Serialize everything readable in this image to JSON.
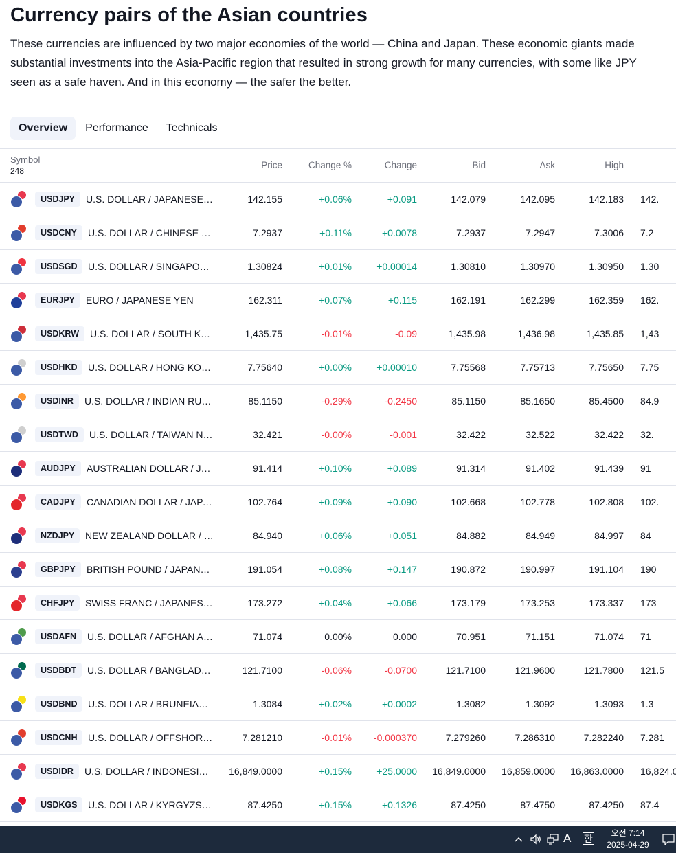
{
  "title": "Currency pairs of the Asian countries",
  "intro": "These currencies are influenced by two major economies of the world — China and Japan. These economic giants made substantial investments into the Asia-Pacific region that resulted in strong growth for many currencies, with some like JPY seen as a safe haven. And in this economy — the safer the better.",
  "tabs": [
    {
      "label": "Overview",
      "active": true
    },
    {
      "label": "Performance",
      "active": false
    },
    {
      "label": "Technicals",
      "active": false
    }
  ],
  "table": {
    "symbol_header": "Symbol",
    "symbol_count": "248",
    "headers": {
      "price": "Price",
      "change_pct": "Change %",
      "change": "Change",
      "bid": "Bid",
      "ask": "Ask",
      "high": "High"
    },
    "rows": [
      {
        "ticker": "USDJPY",
        "name": "U.S. DOLLAR / JAPANESE YEN",
        "price": "142.155",
        "change_pct": "+0.06%",
        "change": "+0.091",
        "bid": "142.079",
        "ask": "142.095",
        "high": "142.183",
        "low": "142.",
        "dir": "pos",
        "base_color": "#3c5aa6",
        "quote_color": "#e8384f"
      },
      {
        "ticker": "USDCNY",
        "name": "U.S. DOLLAR / CHINESE YUAN",
        "price": "7.2937",
        "change_pct": "+0.11%",
        "change": "+0.0078",
        "bid": "7.2937",
        "ask": "7.2947",
        "high": "7.3006",
        "low": "7.2",
        "dir": "pos",
        "base_color": "#3c5aa6",
        "quote_color": "#e23d2d"
      },
      {
        "ticker": "USDSGD",
        "name": "U.S. DOLLAR / SINGAPORE D...",
        "price": "1.30824",
        "change_pct": "+0.01%",
        "change": "+0.00014",
        "bid": "1.30810",
        "ask": "1.30970",
        "high": "1.30950",
        "low": "1.30",
        "dir": "pos",
        "base_color": "#3c5aa6",
        "quote_color": "#ef3340"
      },
      {
        "ticker": "EURJPY",
        "name": "EURO / JAPANESE YEN",
        "price": "162.311",
        "change_pct": "+0.07%",
        "change": "+0.115",
        "bid": "162.191",
        "ask": "162.299",
        "high": "162.359",
        "low": "162.",
        "dir": "pos",
        "base_color": "#1f3f9a",
        "quote_color": "#e8384f"
      },
      {
        "ticker": "USDKRW",
        "name": "U.S. DOLLAR / SOUTH KORE...",
        "price": "1,435.75",
        "change_pct": "-0.01%",
        "change": "-0.09",
        "bid": "1,435.98",
        "ask": "1,436.98",
        "high": "1,435.85",
        "low": "1,43",
        "dir": "neg",
        "base_color": "#3c5aa6",
        "quote_color": "#cd2e3a"
      },
      {
        "ticker": "USDHKD",
        "name": "U.S. DOLLAR / HONG KONG ...",
        "price": "7.75640",
        "change_pct": "+0.00%",
        "change": "+0.00010",
        "bid": "7.75568",
        "ask": "7.75713",
        "high": "7.75650",
        "low": "7.75",
        "dir": "pos",
        "base_color": "#3c5aa6",
        "quote_color": "#cfcfcf"
      },
      {
        "ticker": "USDINR",
        "name": "U.S. DOLLAR / INDIAN RUPEE",
        "price": "85.1150",
        "change_pct": "-0.29%",
        "change": "-0.2450",
        "bid": "85.1150",
        "ask": "85.1650",
        "high": "85.4500",
        "low": "84.9",
        "dir": "neg",
        "base_color": "#3c5aa6",
        "quote_color": "#ff9933"
      },
      {
        "ticker": "USDTWD",
        "name": "U.S. DOLLAR / TAIWAN NEW...",
        "price": "32.421",
        "change_pct": "-0.00%",
        "change": "-0.001",
        "bid": "32.422",
        "ask": "32.522",
        "high": "32.422",
        "low": "32.",
        "dir": "neg",
        "base_color": "#3c5aa6",
        "quote_color": "#cfcfcf"
      },
      {
        "ticker": "AUDJPY",
        "name": "AUSTRALIAN DOLLAR / JAPA...",
        "price": "91.414",
        "change_pct": "+0.10%",
        "change": "+0.089",
        "bid": "91.314",
        "ask": "91.402",
        "high": "91.439",
        "low": "91",
        "dir": "pos",
        "base_color": "#1e2e7a",
        "quote_color": "#e8384f"
      },
      {
        "ticker": "CADJPY",
        "name": "CANADIAN DOLLAR / JAPANE...",
        "price": "102.764",
        "change_pct": "+0.09%",
        "change": "+0.090",
        "bid": "102.668",
        "ask": "102.778",
        "high": "102.808",
        "low": "102.",
        "dir": "pos",
        "base_color": "#e4262b",
        "quote_color": "#e8384f"
      },
      {
        "ticker": "NZDJPY",
        "name": "NEW ZEALAND DOLLAR / JA...",
        "price": "84.940",
        "change_pct": "+0.06%",
        "change": "+0.051",
        "bid": "84.882",
        "ask": "84.949",
        "high": "84.997",
        "low": "84",
        "dir": "pos",
        "base_color": "#1e2e7a",
        "quote_color": "#e8384f"
      },
      {
        "ticker": "GBPJPY",
        "name": "BRITISH POUND / JAPANESE ...",
        "price": "191.054",
        "change_pct": "+0.08%",
        "change": "+0.147",
        "bid": "190.872",
        "ask": "190.997",
        "high": "191.104",
        "low": "190",
        "dir": "pos",
        "base_color": "#2c3f8f",
        "quote_color": "#e8384f"
      },
      {
        "ticker": "CHFJPY",
        "name": "SWISS FRANC / JAPANESE YEN",
        "price": "173.272",
        "change_pct": "+0.04%",
        "change": "+0.066",
        "bid": "173.179",
        "ask": "173.253",
        "high": "173.337",
        "low": "173",
        "dir": "pos",
        "base_color": "#e4262b",
        "quote_color": "#e8384f"
      },
      {
        "ticker": "USDAFN",
        "name": "U.S. DOLLAR / AFGHAN AFG...",
        "price": "71.074",
        "change_pct": "0.00%",
        "change": "0.000",
        "bid": "70.951",
        "ask": "71.151",
        "high": "71.074",
        "low": "71",
        "dir": "flat",
        "base_color": "#3c5aa6",
        "quote_color": "#4f9b4c"
      },
      {
        "ticker": "USDBDT",
        "name": "U.S. DOLLAR / BANGLADESH...",
        "price": "121.7100",
        "change_pct": "-0.06%",
        "change": "-0.0700",
        "bid": "121.7100",
        "ask": "121.9600",
        "high": "121.7800",
        "low": "121.5",
        "dir": "neg",
        "base_color": "#3c5aa6",
        "quote_color": "#006a4e"
      },
      {
        "ticker": "USDBND",
        "name": "U.S. DOLLAR / BRUNEIAN D...",
        "price": "1.3084",
        "change_pct": "+0.02%",
        "change": "+0.0002",
        "bid": "1.3082",
        "ask": "1.3092",
        "high": "1.3093",
        "low": "1.3",
        "dir": "pos",
        "base_color": "#3c5aa6",
        "quote_color": "#f7e017"
      },
      {
        "ticker": "USDCNH",
        "name": "U.S. DOLLAR / OFFSHORE C...",
        "price": "7.281210",
        "change_pct": "-0.01%",
        "change": "-0.000370",
        "bid": "7.279260",
        "ask": "7.286310",
        "high": "7.282240",
        "low": "7.281",
        "dir": "neg",
        "base_color": "#3c5aa6",
        "quote_color": "#e23d2d"
      },
      {
        "ticker": "USDIDR",
        "name": "U.S. DOLLAR / INDONESIAN ...",
        "price": "16,849.0000",
        "change_pct": "+0.15%",
        "change": "+25.0000",
        "bid": "16,849.0000",
        "ask": "16,859.0000",
        "high": "16,863.0000",
        "low": "16,824.0",
        "dir": "pos",
        "base_color": "#3c5aa6",
        "quote_color": "#e8384f"
      },
      {
        "ticker": "USDKGS",
        "name": "U.S. DOLLAR / KYRGYZSTAN...",
        "price": "87.4250",
        "change_pct": "+0.15%",
        "change": "+0.1326",
        "bid": "87.4250",
        "ask": "87.4750",
        "high": "87.4250",
        "low": "87.4",
        "dir": "pos",
        "base_color": "#3c5aa6",
        "quote_color": "#e8112d"
      }
    ]
  },
  "taskbar": {
    "chevron_icon": "chevron-up-icon",
    "volume_icon": "speaker-icon",
    "network_icon": "network-icon",
    "ime_mode": "A",
    "ime_lang": "한",
    "time": "오전 7:14",
    "date": "2025-04-29",
    "notification_icon": "notification-icon"
  }
}
